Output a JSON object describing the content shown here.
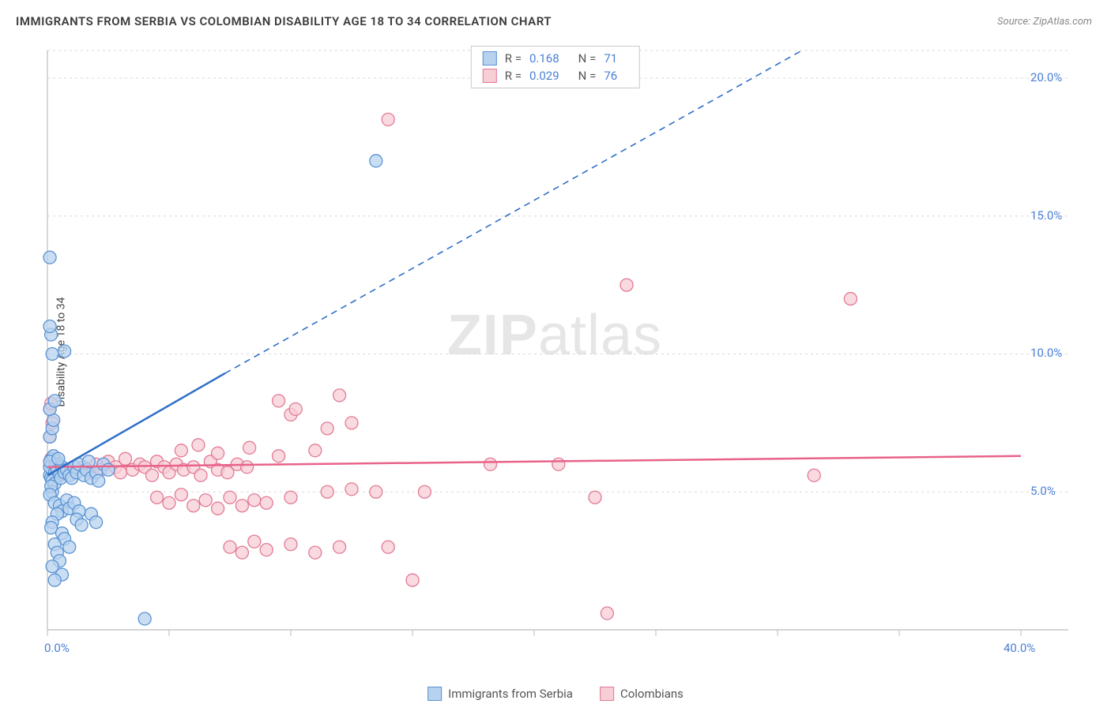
{
  "title": "IMMIGRANTS FROM SERBIA VS COLOMBIAN DISABILITY AGE 18 TO 34 CORRELATION CHART",
  "source": "Source: ZipAtlas.com",
  "watermark": {
    "bold": "ZIP",
    "rest": "atlas"
  },
  "y_axis_label": "Disability Age 18 to 34",
  "chart": {
    "type": "scatter",
    "background_color": "#ffffff",
    "grid_color": "#d8d8d8",
    "axis_line_color": "#bcbcbc",
    "tick_label_color": "#4a7fd6",
    "xlim": [
      0,
      40
    ],
    "ylim": [
      0,
      21
    ],
    "x_ticks": [
      0,
      5,
      10,
      15,
      20,
      25,
      30,
      35,
      40
    ],
    "x_tick_labels": [
      "0.0%",
      "",
      "",
      "",
      "",
      "",
      "",
      "",
      "40.0%"
    ],
    "y_ticks": [
      5,
      10,
      15,
      20
    ],
    "y_tick_labels": [
      "5.0%",
      "10.0%",
      "15.0%",
      "20.0%"
    ],
    "series": [
      {
        "name": "Immigrants from Serbia",
        "marker_fill": "#b7d2ef",
        "marker_stroke": "#5a93d4",
        "marker_radius": 8,
        "marker_opacity": 0.75,
        "r_value": "0.168",
        "n_value": "71",
        "trend": {
          "color": "#2f6fc9",
          "width": 2.5,
          "solid": {
            "x1": 0,
            "y1": 5.6,
            "x2": 7.3,
            "y2": 9.3
          },
          "dashed": {
            "x1": 7.3,
            "y1": 9.3,
            "x2": 31,
            "y2": 21
          }
        },
        "points": [
          [
            0.1,
            5.6
          ],
          [
            0.2,
            5.8
          ],
          [
            0.3,
            6.0
          ],
          [
            0.2,
            6.2
          ],
          [
            0.4,
            6.1
          ],
          [
            0.15,
            5.5
          ],
          [
            0.1,
            5.9
          ],
          [
            0.25,
            6.3
          ],
          [
            0.3,
            5.7
          ],
          [
            0.2,
            5.4
          ],
          [
            0.35,
            6.0
          ],
          [
            0.4,
            5.8
          ],
          [
            0.1,
            6.1
          ],
          [
            0.5,
            5.6
          ],
          [
            0.6,
            5.9
          ],
          [
            0.3,
            5.3
          ],
          [
            0.45,
            6.2
          ],
          [
            0.2,
            5.0
          ],
          [
            0.15,
            5.2
          ],
          [
            0.1,
            4.9
          ],
          [
            0.55,
            5.5
          ],
          [
            0.7,
            5.7
          ],
          [
            0.8,
            5.8
          ],
          [
            0.9,
            5.6
          ],
          [
            1.0,
            5.5
          ],
          [
            1.1,
            5.9
          ],
          [
            1.2,
            5.7
          ],
          [
            1.3,
            6.0
          ],
          [
            1.5,
            5.6
          ],
          [
            1.6,
            5.8
          ],
          [
            1.7,
            6.1
          ],
          [
            1.8,
            5.5
          ],
          [
            2.0,
            5.7
          ],
          [
            2.1,
            5.4
          ],
          [
            2.3,
            6.0
          ],
          [
            2.5,
            5.8
          ],
          [
            0.3,
            4.6
          ],
          [
            0.5,
            4.5
          ],
          [
            0.6,
            4.3
          ],
          [
            0.8,
            4.7
          ],
          [
            0.4,
            4.2
          ],
          [
            0.9,
            4.4
          ],
          [
            1.1,
            4.6
          ],
          [
            1.3,
            4.3
          ],
          [
            0.2,
            3.9
          ],
          [
            0.15,
            3.7
          ],
          [
            0.6,
            3.5
          ],
          [
            0.7,
            3.3
          ],
          [
            0.3,
            3.1
          ],
          [
            0.9,
            3.0
          ],
          [
            0.4,
            2.8
          ],
          [
            0.5,
            2.5
          ],
          [
            0.2,
            2.3
          ],
          [
            0.6,
            2.0
          ],
          [
            0.3,
            1.8
          ],
          [
            1.2,
            4.0
          ],
          [
            1.4,
            3.8
          ],
          [
            1.8,
            4.2
          ],
          [
            2.0,
            3.9
          ],
          [
            4.0,
            0.4
          ],
          [
            0.1,
            7.0
          ],
          [
            0.2,
            7.3
          ],
          [
            0.25,
            7.6
          ],
          [
            0.1,
            8.0
          ],
          [
            0.3,
            8.3
          ],
          [
            0.2,
            10.0
          ],
          [
            0.7,
            10.1
          ],
          [
            0.15,
            10.7
          ],
          [
            0.1,
            11.0
          ],
          [
            0.1,
            13.5
          ],
          [
            13.5,
            17.0
          ]
        ]
      },
      {
        "name": "Colombians",
        "marker_fill": "#f7cdd6",
        "marker_stroke": "#e27a95",
        "marker_radius": 8,
        "marker_opacity": 0.75,
        "r_value": "0.029",
        "n_value": "76",
        "trend": {
          "color": "#e86289",
          "width": 2.5,
          "solid": {
            "x1": 0,
            "y1": 5.9,
            "x2": 40,
            "y2": 6.3
          }
        },
        "points": [
          [
            0.1,
            5.9
          ],
          [
            0.2,
            6.0
          ],
          [
            0.3,
            5.8
          ],
          [
            0.15,
            6.2
          ],
          [
            0.1,
            7.0
          ],
          [
            0.2,
            7.5
          ],
          [
            0.1,
            8.0
          ],
          [
            0.15,
            8.2
          ],
          [
            1.5,
            5.9
          ],
          [
            1.8,
            5.7
          ],
          [
            2.0,
            6.0
          ],
          [
            2.2,
            5.8
          ],
          [
            2.5,
            6.1
          ],
          [
            2.8,
            5.9
          ],
          [
            3.0,
            5.7
          ],
          [
            3.2,
            6.2
          ],
          [
            3.5,
            5.8
          ],
          [
            3.8,
            6.0
          ],
          [
            4.0,
            5.9
          ],
          [
            4.3,
            5.6
          ],
          [
            4.5,
            6.1
          ],
          [
            4.8,
            5.9
          ],
          [
            5.0,
            5.7
          ],
          [
            5.3,
            6.0
          ],
          [
            5.6,
            5.8
          ],
          [
            6.0,
            5.9
          ],
          [
            6.3,
            5.6
          ],
          [
            6.7,
            6.1
          ],
          [
            7.0,
            5.8
          ],
          [
            7.4,
            5.7
          ],
          [
            7.8,
            6.0
          ],
          [
            8.2,
            5.9
          ],
          [
            4.5,
            4.8
          ],
          [
            5.0,
            4.6
          ],
          [
            5.5,
            4.9
          ],
          [
            6.0,
            4.5
          ],
          [
            6.5,
            4.7
          ],
          [
            7.0,
            4.4
          ],
          [
            7.5,
            4.8
          ],
          [
            8.0,
            4.5
          ],
          [
            8.5,
            4.7
          ],
          [
            9.0,
            4.6
          ],
          [
            10.0,
            4.8
          ],
          [
            11.5,
            5.0
          ],
          [
            12.5,
            5.1
          ],
          [
            13.5,
            5.0
          ],
          [
            15.5,
            5.0
          ],
          [
            7.5,
            3.0
          ],
          [
            8.0,
            2.8
          ],
          [
            8.5,
            3.2
          ],
          [
            9.0,
            2.9
          ],
          [
            10.0,
            3.1
          ],
          [
            11.0,
            2.8
          ],
          [
            12.0,
            3.0
          ],
          [
            14.0,
            3.0
          ],
          [
            15.0,
            1.8
          ],
          [
            9.5,
            8.3
          ],
          [
            10.0,
            7.8
          ],
          [
            10.2,
            8.0
          ],
          [
            11.5,
            7.3
          ],
          [
            12.5,
            7.5
          ],
          [
            12.0,
            8.5
          ],
          [
            18.2,
            6.0
          ],
          [
            21.0,
            6.0
          ],
          [
            22.5,
            4.8
          ],
          [
            23.0,
            0.6
          ],
          [
            23.8,
            12.5
          ],
          [
            31.5,
            5.6
          ],
          [
            33.0,
            12.0
          ],
          [
            14.0,
            18.5
          ],
          [
            5.5,
            6.5
          ],
          [
            6.2,
            6.7
          ],
          [
            7.0,
            6.4
          ],
          [
            8.3,
            6.6
          ],
          [
            9.5,
            6.3
          ],
          [
            11.0,
            6.5
          ]
        ]
      }
    ]
  },
  "stats_legend": {
    "r_label": "R =",
    "n_label": "N ="
  },
  "bottom_legend_labels": [
    "Immigrants from Serbia",
    "Colombians"
  ]
}
